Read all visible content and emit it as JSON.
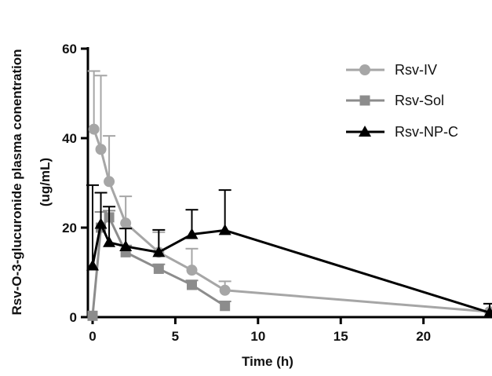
{
  "chart_data": {
    "type": "line",
    "title": "",
    "xlabel": "Time (h)",
    "ylabel_line1": "Rsv-O-3-glucuronide plasma conentration",
    "ylabel_line2": "(ug/mL)",
    "xlim": [
      0,
      24
    ],
    "ylim": [
      0,
      60
    ],
    "xticks": [
      0,
      5,
      10,
      15,
      20
    ],
    "yticks": [
      0,
      20,
      40,
      60
    ],
    "grid": false,
    "legend_position": "top-right",
    "series": [
      {
        "name": "Rsv-IV",
        "color": "#a6a6a6",
        "marker": "circle",
        "points": [
          {
            "x": 0.08,
            "y": 42,
            "err": 13
          },
          {
            "x": 0.5,
            "y": 37.5,
            "err": 16.5
          },
          {
            "x": 1,
            "y": 30.3,
            "err": 10.2
          },
          {
            "x": 2,
            "y": 21,
            "err": 6
          },
          {
            "x": 4,
            "y": 14.5,
            "err": 4.5
          },
          {
            "x": 6,
            "y": 10.5,
            "err": 4.8
          },
          {
            "x": 8,
            "y": 6,
            "err": 2
          },
          {
            "x": 24,
            "y": 1.2,
            "err": 1.8
          }
        ]
      },
      {
        "name": "Rsv-Sol",
        "color": "#8c8c8c",
        "marker": "square",
        "points": [
          {
            "x": 0,
            "y": 0.3,
            "err": 0
          },
          {
            "x": 0.5,
            "y": 20,
            "err": 3.5
          },
          {
            "x": 1,
            "y": 22.3,
            "err": 1.5
          },
          {
            "x": 2,
            "y": 14.5,
            "err": 1.5
          },
          {
            "x": 4,
            "y": 10.8,
            "err": 1
          },
          {
            "x": 6,
            "y": 7.2,
            "err": 1
          },
          {
            "x": 8,
            "y": 2.5,
            "err": 1
          }
        ]
      },
      {
        "name": "Rsv-NP-C",
        "color": "#000000",
        "marker": "triangle",
        "points": [
          {
            "x": 0,
            "y": 11.5,
            "err": 18
          },
          {
            "x": 0.5,
            "y": 20.8,
            "err": 7
          },
          {
            "x": 1,
            "y": 16.7,
            "err": 8
          },
          {
            "x": 2,
            "y": 15.8,
            "err": 4
          },
          {
            "x": 4,
            "y": 14.5,
            "err": 5
          },
          {
            "x": 6,
            "y": 18.5,
            "err": 5.5
          },
          {
            "x": 8,
            "y": 19.4,
            "err": 9
          },
          {
            "x": 24,
            "y": 1,
            "err": 2
          }
        ]
      }
    ]
  }
}
